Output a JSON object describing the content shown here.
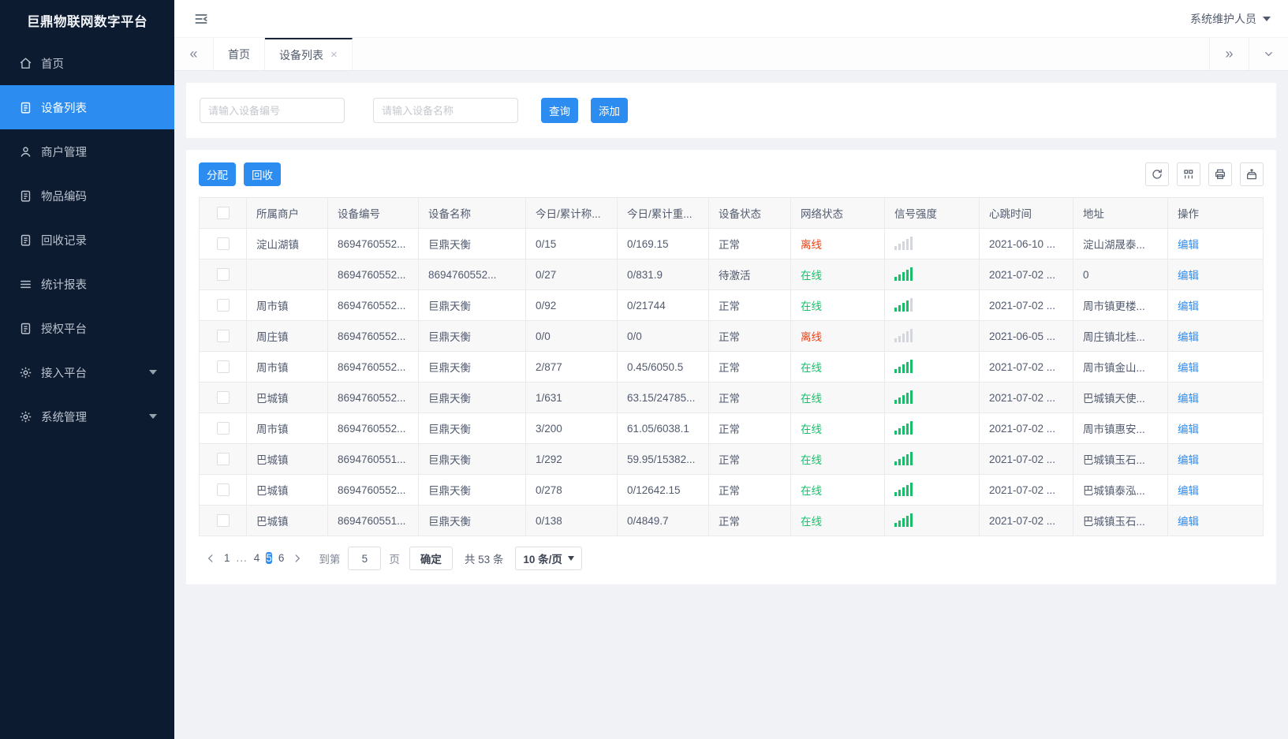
{
  "app": {
    "title": "巨鼎物联网数字平台",
    "user": "系统维护人员"
  },
  "icons": {
    "scroll_left": "«",
    "scroll_right": "»",
    "tab_close": "×"
  },
  "sidebar": {
    "items": [
      {
        "id": "home",
        "label": "首页",
        "icon": "home",
        "active": false,
        "caret": false
      },
      {
        "id": "device-list",
        "label": "设备列表",
        "icon": "doc",
        "active": true,
        "caret": false
      },
      {
        "id": "merchant-manage",
        "label": "商户管理",
        "icon": "user",
        "active": false,
        "caret": false
      },
      {
        "id": "item-code",
        "label": "物品编码",
        "icon": "doc",
        "active": false,
        "caret": false
      },
      {
        "id": "recycle-record",
        "label": "回收记录",
        "icon": "doc",
        "active": false,
        "caret": false
      },
      {
        "id": "report",
        "label": "统计报表",
        "icon": "list",
        "active": false,
        "caret": false
      },
      {
        "id": "auth-platform",
        "label": "授权平台",
        "icon": "doc",
        "active": false,
        "caret": false
      },
      {
        "id": "access-platform",
        "label": "接入平台",
        "icon": "gear",
        "active": false,
        "caret": true
      },
      {
        "id": "system-manage",
        "label": "系统管理",
        "icon": "gear",
        "active": false,
        "caret": true
      }
    ]
  },
  "tabs": {
    "items": [
      {
        "label": "首页"
      },
      {
        "label": "设备列表",
        "active": true
      }
    ]
  },
  "search": {
    "device_no_placeholder": "请输入设备编号",
    "device_name_placeholder": "请输入设备名称",
    "query_label": "查询",
    "add_label": "添加"
  },
  "toolbar": {
    "assign_label": "分配",
    "recycle_label": "回收",
    "icon_buttons": [
      "refresh",
      "columns",
      "print",
      "export"
    ]
  },
  "table": {
    "headers": [
      "所属商户",
      "设备编号",
      "设备名称",
      "今日/累计称...",
      "今日/累计重...",
      "设备状态",
      "网络状态",
      "信号强度",
      "心跳时间",
      "地址",
      "操作"
    ],
    "rows": [
      {
        "merchant": "淀山湖镇",
        "device_no": "8694760552...",
        "device_name": "巨鼎天衡",
        "today_total_count": "0/15",
        "today_total_weight": "0/169.15",
        "device_status": "正常",
        "network_status": "离线",
        "network_state": "offline",
        "signal_green_bars": 0,
        "heartbeat_time": "2021-06-10 ...",
        "address": "淀山湖晟泰...",
        "action": "编辑"
      },
      {
        "merchant": "",
        "device_no": "8694760552...",
        "device_name": "8694760552...",
        "today_total_count": "0/27",
        "today_total_weight": "0/831.9",
        "device_status": "待激活",
        "network_status": "在线",
        "network_state": "online",
        "signal_green_bars": 5,
        "heartbeat_time": "2021-07-02 ...",
        "address": "0",
        "action": "编辑"
      },
      {
        "merchant": "周市镇",
        "device_no": "8694760552...",
        "device_name": "巨鼎天衡",
        "today_total_count": "0/92",
        "today_total_weight": "0/21744",
        "device_status": "正常",
        "network_status": "在线",
        "network_state": "online",
        "signal_green_bars": 4,
        "heartbeat_time": "2021-07-02 ...",
        "address": "周市镇更楼...",
        "action": "编辑"
      },
      {
        "merchant": "周庄镇",
        "device_no": "8694760552...",
        "device_name": "巨鼎天衡",
        "today_total_count": "0/0",
        "today_total_weight": "0/0",
        "device_status": "正常",
        "network_status": "离线",
        "network_state": "offline",
        "signal_green_bars": 0,
        "heartbeat_time": "2021-06-05 ...",
        "address": "周庄镇北桂...",
        "action": "编辑"
      },
      {
        "merchant": "周市镇",
        "device_no": "8694760552...",
        "device_name": "巨鼎天衡",
        "today_total_count": "2/877",
        "today_total_weight": "0.45/6050.5",
        "device_status": "正常",
        "network_status": "在线",
        "network_state": "online",
        "signal_green_bars": 5,
        "heartbeat_time": "2021-07-02 ...",
        "address": "周市镇金山...",
        "action": "编辑"
      },
      {
        "merchant": "巴城镇",
        "device_no": "8694760552...",
        "device_name": "巨鼎天衡",
        "today_total_count": "1/631",
        "today_total_weight": "63.15/24785...",
        "device_status": "正常",
        "network_status": "在线",
        "network_state": "online",
        "signal_green_bars": 5,
        "heartbeat_time": "2021-07-02 ...",
        "address": "巴城镇天使...",
        "action": "编辑"
      },
      {
        "merchant": "周市镇",
        "device_no": "8694760552...",
        "device_name": "巨鼎天衡",
        "today_total_count": "3/200",
        "today_total_weight": "61.05/6038.1",
        "device_status": "正常",
        "network_status": "在线",
        "network_state": "online",
        "signal_green_bars": 5,
        "heartbeat_time": "2021-07-02 ...",
        "address": "周市镇惠安...",
        "action": "编辑"
      },
      {
        "merchant": "巴城镇",
        "device_no": "8694760551...",
        "device_name": "巨鼎天衡",
        "today_total_count": "1/292",
        "today_total_weight": "59.95/15382...",
        "device_status": "正常",
        "network_status": "在线",
        "network_state": "online",
        "signal_green_bars": 5,
        "heartbeat_time": "2021-07-02 ...",
        "address": "巴城镇玉石...",
        "action": "编辑"
      },
      {
        "merchant": "巴城镇",
        "device_no": "8694760552...",
        "device_name": "巨鼎天衡",
        "today_total_count": "0/278",
        "today_total_weight": "0/12642.15",
        "device_status": "正常",
        "network_status": "在线",
        "network_state": "online",
        "signal_green_bars": 5,
        "heartbeat_time": "2021-07-02 ...",
        "address": "巴城镇泰泓...",
        "action": "编辑"
      },
      {
        "merchant": "巴城镇",
        "device_no": "8694760551...",
        "device_name": "巨鼎天衡",
        "today_total_count": "0/138",
        "today_total_weight": "0/4849.7",
        "device_status": "正常",
        "network_status": "在线",
        "network_state": "online",
        "signal_green_bars": 5,
        "heartbeat_time": "2021-07-02 ...",
        "address": "巴城镇玉石...",
        "action": "编辑"
      }
    ]
  },
  "pagination": {
    "pages": [
      "1",
      "...",
      "4",
      "5",
      "6"
    ],
    "active_page": "5",
    "goto_label": "到第",
    "goto_value": "5",
    "page_unit": "页",
    "confirm_label": "确定",
    "total_label": "共 53 条",
    "page_size_label": "10 条/页"
  }
}
